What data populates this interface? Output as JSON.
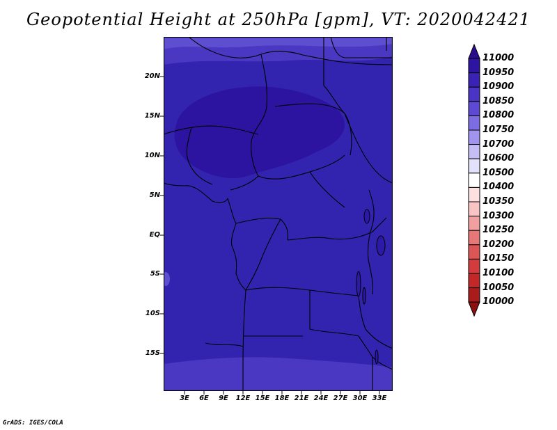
{
  "title": "Geopotential Height at 250hPa [gpm], VT: 2020042421",
  "footer": "GrADS: IGES/COLA",
  "lat_labels": [
    "20N",
    "15N",
    "10N",
    "5N",
    "EQ",
    "5S",
    "10S",
    "15S"
  ],
  "lon_labels": [
    "3E",
    "6E",
    "9E",
    "12E",
    "15E",
    "18E",
    "21E",
    "24E",
    "27E",
    "30E",
    "33E"
  ],
  "colorbar": {
    "levels": [
      "11000",
      "10950",
      "10900",
      "10850",
      "10800",
      "10750",
      "10700",
      "10600",
      "10500",
      "10400",
      "10350",
      "10300",
      "10250",
      "10200",
      "10150",
      "10100",
      "10050",
      "10000"
    ],
    "colors": [
      "#2a0d8e",
      "#2e14a2",
      "#3a22b4",
      "#4a34c6",
      "#5c4ad4",
      "#7c6de2",
      "#a094ee",
      "#c4bdf6",
      "#e3e0fb",
      "#ffffff",
      "#fde0e0",
      "#f9c4c4",
      "#f1a0a0",
      "#e67878",
      "#dc5656",
      "#d23c3c",
      "#c22828",
      "#a81c1c",
      "#8c1010"
    ]
  },
  "map_colors": {
    "base": "#3324b0",
    "dark": "#2c14a0",
    "light": "#4a38c2",
    "lighter": "#5e4ed0"
  }
}
